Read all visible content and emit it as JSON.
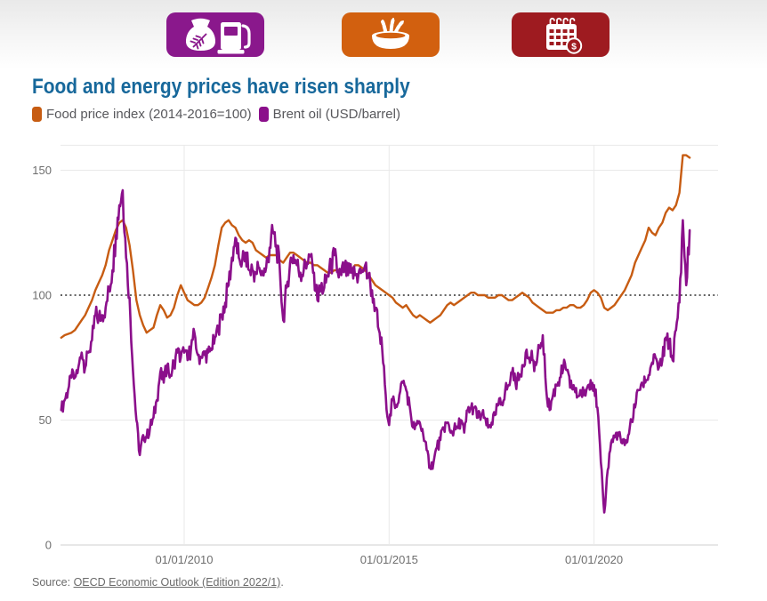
{
  "colors": {
    "title": "#17689b",
    "food_series": "#c75c12",
    "brent_series": "#8b0f8b",
    "badge_purple": "#8a188c",
    "badge_orange": "#d2600f",
    "badge_red": "#9e1b20",
    "gridline": "#e9e9e9",
    "axis_line": "#cfcfcf",
    "reference_dotted": "#4d4d4d"
  },
  "header_badges": [
    {
      "name": "food-and-energy",
      "color": "#8a188c",
      "icon": "grain-sack-and-fuel-pump-icon"
    },
    {
      "name": "food",
      "color": "#d2600f",
      "icon": "grain-bowl-icon"
    },
    {
      "name": "calendar-prices",
      "color": "#9e1b20",
      "icon": "calendar-dollar-icon",
      "symbol": "$"
    }
  ],
  "title": {
    "text": "Food and energy prices have risen sharply"
  },
  "legend": [
    {
      "label": "Food price index (2014-2016=100)",
      "color": "#c75c12"
    },
    {
      "label": "Brent oil (USD/barrel)",
      "color": "#8b0f8b"
    }
  ],
  "source": {
    "prefix": "Source: ",
    "link_text": "OECD Economic Outlook (Edition 2022/1)",
    "suffix": "."
  },
  "chart_data": {
    "type": "line",
    "title": "Food and energy prices have risen sharply",
    "interval": "monthly",
    "start_year": 2007,
    "start_month": 1,
    "x_axis": {
      "tick_labels": [
        "01/01/2010",
        "01/01/2015",
        "01/01/2020"
      ],
      "tick_years": [
        2010,
        2015,
        2020
      ]
    },
    "y_axis": {
      "ticks": [
        0,
        50,
        100,
        150
      ],
      "range": [
        0,
        160
      ],
      "reference_line": 100
    },
    "grid": "light horizontal + vertical at date ticks, dotted reference at 100",
    "legend_position": "top-left",
    "series": [
      {
        "name": "Food price index (2014-2016=100)",
        "color": "#c75c12",
        "style": "smooth",
        "values": [
          83,
          84,
          84.5,
          85,
          86,
          88,
          90,
          92,
          95,
          98,
          102,
          105,
          108,
          112,
          118,
          122,
          126,
          129,
          130,
          127,
          120,
          110,
          98,
          92,
          88,
          85,
          86,
          87,
          92,
          96,
          94,
          91,
          92,
          95,
          100,
          104,
          101,
          98,
          97,
          96,
          96,
          97,
          99,
          103,
          107,
          112,
          120,
          127,
          129,
          130,
          128,
          127,
          124,
          122,
          121,
          122,
          121,
          118,
          117,
          116,
          115,
          116,
          116,
          116,
          114,
          113,
          115,
          117,
          117,
          116,
          115,
          114,
          113,
          113,
          112,
          112,
          111,
          110,
          109,
          109,
          110,
          110,
          110,
          111,
          110,
          110,
          112,
          112,
          111,
          110,
          108,
          106,
          104,
          103,
          102,
          101,
          100,
          99,
          97,
          96,
          95,
          96,
          94,
          92,
          91,
          92,
          91,
          90,
          89,
          90,
          91,
          92,
          94,
          96,
          97,
          96,
          97,
          98,
          99,
          100,
          101,
          101,
          100,
          100,
          100,
          99,
          99,
          99,
          100,
          100,
          99,
          98,
          98,
          99,
          100,
          101,
          100,
          99,
          97,
          96,
          95,
          94,
          93,
          93,
          93,
          94,
          94,
          95,
          95,
          96,
          96,
          95,
          95,
          96,
          98,
          101,
          102,
          101,
          99,
          95,
          94,
          95,
          96,
          98,
          100,
          102,
          105,
          108,
          113,
          116,
          119,
          122,
          127,
          125,
          124,
          127,
          129,
          133,
          135,
          134,
          136,
          141,
          156,
          156,
          155
        ]
      },
      {
        "name": "Brent oil (USD/barrel)",
        "color": "#8b0f8b",
        "style": "volatile",
        "values": [
          54,
          58,
          62,
          67,
          67,
          71,
          77,
          71,
          77,
          82,
          92,
          91,
          92,
          95,
          102,
          110,
          124,
          136,
          142,
          115,
          99,
          70,
          50,
          36,
          44,
          43,
          47,
          51,
          58,
          69,
          65,
          72,
          68,
          73,
          77,
          75,
          77,
          74,
          79,
          85,
          76,
          75,
          76,
          77,
          78,
          83,
          86,
          92,
          97,
          104,
          115,
          123,
          115,
          114,
          117,
          110,
          110,
          109,
          111,
          108,
          111,
          119,
          125,
          120,
          110,
          90,
          103,
          113,
          116,
          112,
          109,
          110,
          113,
          116,
          109,
          98,
          103,
          103,
          108,
          111,
          116,
          109,
          108,
          111,
          108,
          109,
          108,
          108,
          110,
          112,
          107,
          102,
          95,
          86,
          78,
          60,
          48,
          58,
          56,
          60,
          65,
          62,
          56,
          47,
          48,
          49,
          44,
          38,
          31,
          33,
          39,
          42,
          47,
          49,
          45,
          46,
          47,
          50,
          45,
          54,
          55,
          55,
          51,
          52,
          51,
          47,
          49,
          52,
          56,
          57,
          62,
          64,
          69,
          65,
          66,
          72,
          77,
          75,
          74,
          72,
          79,
          84,
          62,
          54,
          60,
          64,
          67,
          71,
          70,
          63,
          64,
          59,
          62,
          60,
          63,
          66,
          64,
          55,
          33,
          13,
          30,
          41,
          43,
          45,
          41,
          40,
          44,
          50,
          55,
          62,
          65,
          65,
          68,
          73,
          75,
          71,
          74,
          83,
          81,
          74,
          86,
          97,
          130,
          104,
          126
        ]
      }
    ]
  }
}
